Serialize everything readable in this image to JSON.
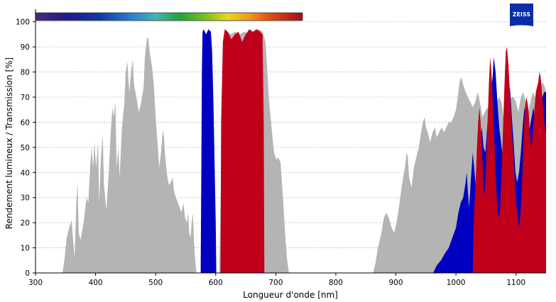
{
  "chart_data": {
    "type": "area",
    "xlabel": "Longueur d'onde [nm]",
    "ylabel": "Rendement lumineux / Transmission [%]",
    "xlim": [
      300,
      1150
    ],
    "ylim": [
      0,
      105
    ],
    "xticks": [
      300,
      400,
      500,
      600,
      700,
      800,
      900,
      1000,
      1100
    ],
    "yticks": [
      0,
      10,
      20,
      30,
      40,
      50,
      60,
      70,
      80,
      90,
      100
    ],
    "grid": "horizontal dashed",
    "spectrum_bar_range_nm": [
      300,
      745
    ],
    "series": [
      {
        "color": "#b4b4b4",
        "points": [
          [
            345,
            0
          ],
          [
            348,
            5
          ],
          [
            352,
            14
          ],
          [
            356,
            18
          ],
          [
            360,
            21
          ],
          [
            362,
            15
          ],
          [
            365,
            6
          ],
          [
            368,
            28
          ],
          [
            370,
            36
          ],
          [
            372,
            16
          ],
          [
            375,
            13
          ],
          [
            380,
            20
          ],
          [
            385,
            30
          ],
          [
            388,
            28
          ],
          [
            390,
            38
          ],
          [
            393,
            50
          ],
          [
            396,
            42
          ],
          [
            398,
            52
          ],
          [
            401,
            42
          ],
          [
            404,
            52
          ],
          [
            406,
            28
          ],
          [
            409,
            46
          ],
          [
            412,
            55
          ],
          [
            414,
            35
          ],
          [
            418,
            25
          ],
          [
            422,
            40
          ],
          [
            425,
            55
          ],
          [
            428,
            66
          ],
          [
            430,
            62
          ],
          [
            433,
            68
          ],
          [
            435,
            42
          ],
          [
            438,
            50
          ],
          [
            440,
            38
          ],
          [
            444,
            58
          ],
          [
            448,
            68
          ],
          [
            450,
            80
          ],
          [
            453,
            84
          ],
          [
            456,
            72
          ],
          [
            459,
            80
          ],
          [
            462,
            85
          ],
          [
            464,
            75
          ],
          [
            468,
            70
          ],
          [
            472,
            64
          ],
          [
            476,
            68
          ],
          [
            480,
            74
          ],
          [
            482,
            86
          ],
          [
            484,
            90
          ],
          [
            486,
            94
          ],
          [
            488,
            93
          ],
          [
            490,
            88
          ],
          [
            494,
            82
          ],
          [
            497,
            75
          ],
          [
            500,
            62
          ],
          [
            503,
            52
          ],
          [
            506,
            42
          ],
          [
            509,
            48
          ],
          [
            512,
            57
          ],
          [
            514,
            54
          ],
          [
            516,
            46
          ],
          [
            519,
            39
          ],
          [
            522,
            35
          ],
          [
            525,
            36
          ],
          [
            528,
            38
          ],
          [
            531,
            32
          ],
          [
            534,
            30
          ],
          [
            537,
            28
          ],
          [
            540,
            26
          ],
          [
            543,
            24
          ],
          [
            546,
            28
          ],
          [
            549,
            22
          ],
          [
            552,
            20
          ],
          [
            554,
            24
          ],
          [
            556,
            16
          ],
          [
            558,
            14
          ],
          [
            560,
            20
          ],
          [
            562,
            24
          ],
          [
            564,
            12
          ],
          [
            566,
            5
          ],
          [
            568,
            0
          ],
          [
            606,
            0
          ],
          [
            609,
            40
          ],
          [
            612,
            80
          ],
          [
            616,
            93
          ],
          [
            620,
            96
          ],
          [
            626,
            95
          ],
          [
            632,
            96
          ],
          [
            640,
            95
          ],
          [
            648,
            96
          ],
          [
            656,
            95
          ],
          [
            664,
            96
          ],
          [
            672,
            97
          ],
          [
            678,
            96
          ],
          [
            683,
            92
          ],
          [
            686,
            80
          ],
          [
            689,
            68
          ],
          [
            693,
            58
          ],
          [
            697,
            48
          ],
          [
            701,
            45
          ],
          [
            704,
            46
          ],
          [
            708,
            44
          ],
          [
            712,
            30
          ],
          [
            716,
            14
          ],
          [
            719,
            5
          ],
          [
            722,
            0
          ],
          [
            862,
            0
          ],
          [
            866,
            4
          ],
          [
            870,
            10
          ],
          [
            876,
            16
          ],
          [
            880,
            22
          ],
          [
            884,
            24
          ],
          [
            888,
            22
          ],
          [
            893,
            18
          ],
          [
            897,
            16
          ],
          [
            901,
            20
          ],
          [
            905,
            26
          ],
          [
            910,
            35
          ],
          [
            915,
            42
          ],
          [
            918,
            48
          ],
          [
            920,
            46
          ],
          [
            922,
            38
          ],
          [
            926,
            34
          ],
          [
            930,
            42
          ],
          [
            934,
            46
          ],
          [
            938,
            50
          ],
          [
            942,
            56
          ],
          [
            945,
            60
          ],
          [
            948,
            62
          ],
          [
            950,
            58
          ],
          [
            953,
            56
          ],
          [
            957,
            52
          ],
          [
            961,
            56
          ],
          [
            965,
            58
          ],
          [
            968,
            54
          ],
          [
            972,
            56
          ],
          [
            976,
            58
          ],
          [
            980,
            56
          ],
          [
            984,
            58
          ],
          [
            988,
            60
          ],
          [
            992,
            60
          ],
          [
            996,
            62
          ],
          [
            1000,
            65
          ],
          [
            1003,
            70
          ],
          [
            1006,
            76
          ],
          [
            1009,
            78
          ],
          [
            1012,
            75
          ],
          [
            1016,
            72
          ],
          [
            1020,
            70
          ],
          [
            1024,
            68
          ],
          [
            1028,
            66
          ],
          [
            1032,
            68
          ],
          [
            1036,
            72
          ],
          [
            1040,
            68
          ],
          [
            1044,
            62
          ],
          [
            1048,
            64
          ],
          [
            1052,
            66
          ],
          [
            1056,
            62
          ],
          [
            1060,
            64
          ],
          [
            1064,
            66
          ],
          [
            1068,
            68
          ],
          [
            1072,
            70
          ],
          [
            1076,
            68
          ],
          [
            1080,
            60
          ],
          [
            1084,
            60
          ],
          [
            1088,
            66
          ],
          [
            1092,
            70
          ],
          [
            1096,
            70
          ],
          [
            1100,
            68
          ],
          [
            1104,
            64
          ],
          [
            1108,
            70
          ],
          [
            1112,
            72
          ],
          [
            1116,
            68
          ],
          [
            1120,
            64
          ],
          [
            1124,
            68
          ],
          [
            1128,
            72
          ],
          [
            1132,
            70
          ],
          [
            1136,
            74
          ],
          [
            1140,
            74
          ],
          [
            1144,
            76
          ],
          [
            1148,
            74
          ],
          [
            1150,
            72
          ],
          [
            1150,
            0
          ]
        ]
      },
      {
        "color": "#0000c0",
        "points": [
          [
            575,
            0
          ],
          [
            576,
            40
          ],
          [
            577,
            80
          ],
          [
            578,
            96
          ],
          [
            580,
            97
          ],
          [
            584,
            95
          ],
          [
            588,
            97
          ],
          [
            592,
            96
          ],
          [
            594,
            88
          ],
          [
            596,
            70
          ],
          [
            598,
            45
          ],
          [
            600,
            20
          ],
          [
            601,
            0
          ],
          [
            962,
            0
          ],
          [
            968,
            3
          ],
          [
            975,
            5
          ],
          [
            982,
            8
          ],
          [
            988,
            10
          ],
          [
            994,
            14
          ],
          [
            1000,
            18
          ],
          [
            1004,
            24
          ],
          [
            1008,
            28
          ],
          [
            1012,
            30
          ],
          [
            1016,
            36
          ],
          [
            1018,
            40
          ],
          [
            1020,
            32
          ],
          [
            1022,
            26
          ],
          [
            1025,
            38
          ],
          [
            1028,
            48
          ],
          [
            1031,
            40
          ],
          [
            1034,
            30
          ],
          [
            1037,
            42
          ],
          [
            1040,
            52
          ],
          [
            1043,
            58
          ],
          [
            1046,
            50
          ],
          [
            1049,
            48
          ],
          [
            1052,
            58
          ],
          [
            1055,
            66
          ],
          [
            1058,
            72
          ],
          [
            1061,
            78
          ],
          [
            1063,
            86
          ],
          [
            1066,
            80
          ],
          [
            1069,
            68
          ],
          [
            1072,
            58
          ],
          [
            1075,
            52
          ],
          [
            1078,
            46
          ],
          [
            1081,
            50
          ],
          [
            1084,
            58
          ],
          [
            1087,
            66
          ],
          [
            1090,
            74
          ],
          [
            1093,
            62
          ],
          [
            1096,
            52
          ],
          [
            1099,
            40
          ],
          [
            1102,
            36
          ],
          [
            1105,
            40
          ],
          [
            1108,
            48
          ],
          [
            1111,
            58
          ],
          [
            1114,
            66
          ],
          [
            1117,
            60
          ],
          [
            1120,
            55
          ],
          [
            1123,
            58
          ],
          [
            1126,
            62
          ],
          [
            1129,
            66
          ],
          [
            1132,
            60
          ],
          [
            1135,
            56
          ],
          [
            1138,
            60
          ],
          [
            1141,
            66
          ],
          [
            1144,
            70
          ],
          [
            1147,
            72
          ],
          [
            1150,
            72
          ],
          [
            1150,
            0
          ]
        ]
      },
      {
        "color": "#c0001a",
        "points": [
          [
            608,
            0
          ],
          [
            609,
            60
          ],
          [
            612,
            92
          ],
          [
            615,
            97
          ],
          [
            620,
            96
          ],
          [
            626,
            93
          ],
          [
            632,
            95
          ],
          [
            638,
            96
          ],
          [
            644,
            92
          ],
          [
            650,
            95
          ],
          [
            656,
            97
          ],
          [
            662,
            96
          ],
          [
            668,
            97
          ],
          [
            674,
            96
          ],
          [
            678,
            95
          ],
          [
            680,
            60
          ],
          [
            681,
            0
          ],
          [
            1028,
            0
          ],
          [
            1029,
            16
          ],
          [
            1031,
            28
          ],
          [
            1033,
            38
          ],
          [
            1035,
            50
          ],
          [
            1037,
            60
          ],
          [
            1039,
            66
          ],
          [
            1041,
            60
          ],
          [
            1043,
            50
          ],
          [
            1045,
            40
          ],
          [
            1047,
            30
          ],
          [
            1049,
            36
          ],
          [
            1051,
            50
          ],
          [
            1053,
            62
          ],
          [
            1055,
            76
          ],
          [
            1057,
            86
          ],
          [
            1059,
            80
          ],
          [
            1061,
            70
          ],
          [
            1063,
            58
          ],
          [
            1065,
            46
          ],
          [
            1067,
            34
          ],
          [
            1069,
            26
          ],
          [
            1071,
            22
          ],
          [
            1073,
            24
          ],
          [
            1075,
            34
          ],
          [
            1077,
            48
          ],
          [
            1079,
            62
          ],
          [
            1081,
            76
          ],
          [
            1083,
            88
          ],
          [
            1085,
            90
          ],
          [
            1087,
            84
          ],
          [
            1089,
            76
          ],
          [
            1091,
            66
          ],
          [
            1093,
            56
          ],
          [
            1095,
            48
          ],
          [
            1097,
            40
          ],
          [
            1099,
            32
          ],
          [
            1101,
            26
          ],
          [
            1103,
            22
          ],
          [
            1105,
            18
          ],
          [
            1107,
            22
          ],
          [
            1109,
            30
          ],
          [
            1111,
            42
          ],
          [
            1113,
            56
          ],
          [
            1115,
            66
          ],
          [
            1117,
            70
          ],
          [
            1119,
            68
          ],
          [
            1121,
            64
          ],
          [
            1123,
            56
          ],
          [
            1125,
            50
          ],
          [
            1127,
            52
          ],
          [
            1129,
            60
          ],
          [
            1131,
            66
          ],
          [
            1133,
            72
          ],
          [
            1135,
            74
          ],
          [
            1137,
            76
          ],
          [
            1139,
            80
          ],
          [
            1141,
            78
          ],
          [
            1143,
            72
          ],
          [
            1145,
            66
          ],
          [
            1147,
            60
          ],
          [
            1149,
            56
          ],
          [
            1150,
            56
          ],
          [
            1150,
            0
          ]
        ]
      }
    ]
  },
  "logo": {
    "text": "ZEISS",
    "color": "#0a2ea8"
  }
}
